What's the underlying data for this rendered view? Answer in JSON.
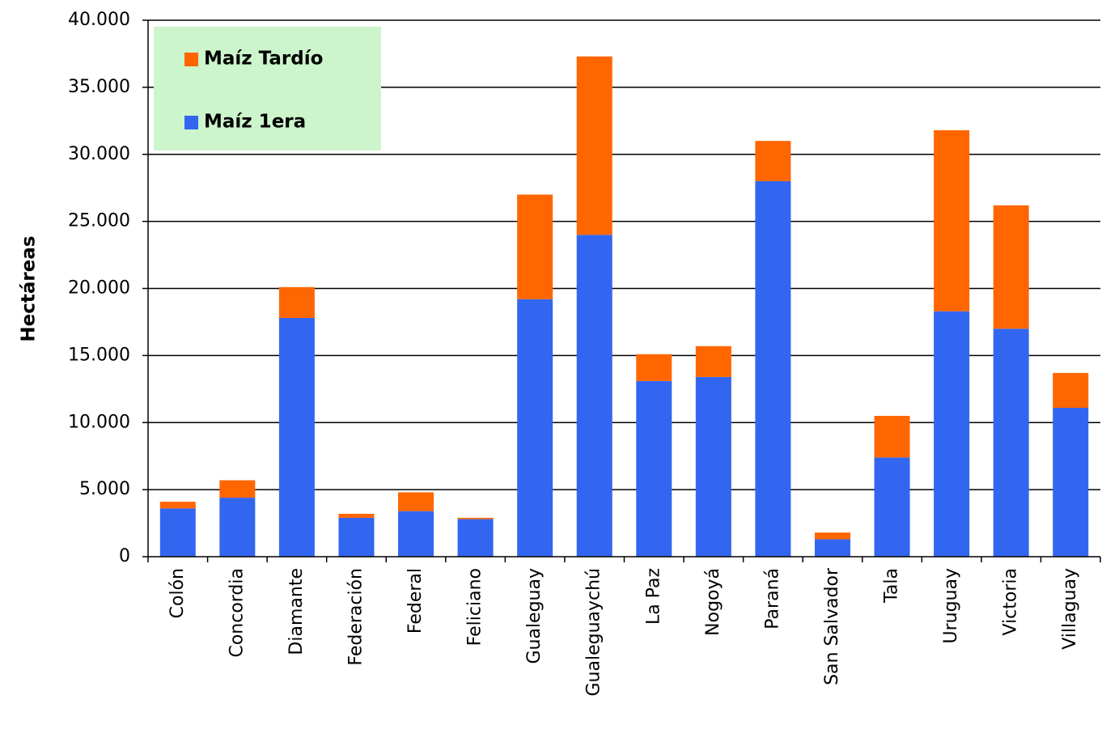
{
  "chart_data": {
    "type": "stacked_bar",
    "y_axis_label": "Hectáreas",
    "categories": [
      "Colón",
      "Concordia",
      "Diamante",
      "Federación",
      "Federal",
      "Feliciano",
      "Gualeguay",
      "Gualeguaychú",
      "La Paz",
      "Nogoyá",
      "Paraná",
      "San Salvador",
      "Tala",
      "Uruguay",
      "Victoria",
      "Villaguay"
    ],
    "series": [
      {
        "name": "Maíz 1era",
        "color": "#3366f0",
        "values": [
          3600,
          4400,
          17800,
          2900,
          3400,
          2800,
          19200,
          24000,
          13100,
          13400,
          28000,
          1300,
          7400,
          18300,
          17000,
          11100
        ]
      },
      {
        "name": "Maíz Tardío",
        "color": "#ff6600",
        "values": [
          500,
          1300,
          2300,
          300,
          1400,
          100,
          7800,
          13300,
          2000,
          2300,
          3000,
          500,
          3100,
          13500,
          9200,
          2600
        ]
      }
    ],
    "ylim": [
      0,
      40000
    ],
    "yticks": [
      0,
      {
        "value": 5000,
        "label": "5.000"
      },
      {
        "value": 10000,
        "label": "10.000"
      },
      {
        "value": 15000,
        "label": "15.000"
      },
      {
        "value": 20000,
        "label": "20.000"
      },
      {
        "value": 25000,
        "label": "25.000"
      },
      {
        "value": 30000,
        "label": "30.000"
      },
      {
        "value": 35000,
        "label": "35.000"
      },
      {
        "value": 40000,
        "label": "40.000"
      }
    ],
    "grid": true,
    "legend_position": "upper left"
  }
}
